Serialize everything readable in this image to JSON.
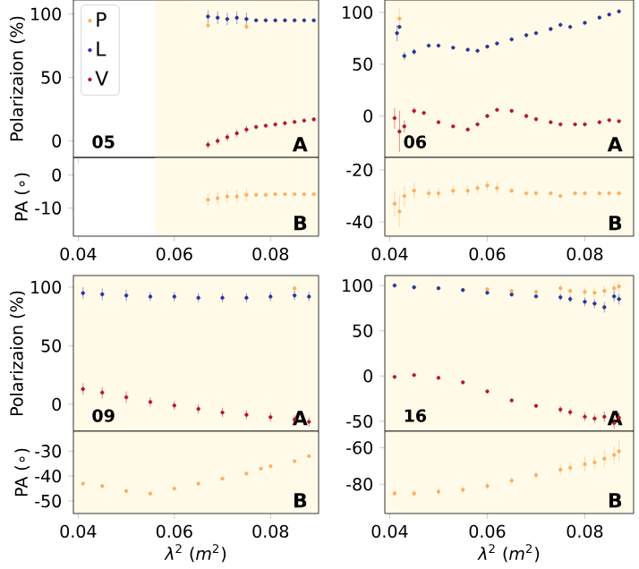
{
  "chart_data": [
    {
      "type": "scatter",
      "ylabel": "Polarizaion (%)",
      "xlim": [
        0.039,
        0.09
      ],
      "ylim": [
        -13,
        111
      ],
      "xticks": [
        0.04,
        0.06,
        0.08
      ],
      "yticks": [
        0,
        50,
        100
      ],
      "tick_labels": "y",
      "legend": "top left",
      "marker": "circle",
      "annotations": [
        "05",
        "A"
      ],
      "bands": [
        {
          "axis": "x",
          "from": 0.056,
          "to": 0.09,
          "color": "#fffbe8"
        }
      ],
      "series": [
        {
          "name": "P",
          "color": "#fdae61",
          "x": [
            0.067,
            0.075
          ],
          "values": [
            91,
            90
          ],
          "errors": [
            2,
            2
          ]
        },
        {
          "name": "L",
          "color": "#2b3499",
          "x": [
            0.067,
            0.069,
            0.071,
            0.073,
            0.075,
            0.077,
            0.079,
            0.081,
            0.083,
            0.085,
            0.087,
            0.089
          ],
          "values": [
            98,
            97,
            96,
            97,
            96,
            95,
            95,
            95,
            95,
            95,
            95,
            95
          ],
          "errors": [
            5,
            5,
            5,
            5,
            5,
            null,
            null,
            null,
            null,
            null,
            null,
            null
          ]
        },
        {
          "name": "V",
          "color": "#b2182b",
          "x": [
            0.067,
            0.069,
            0.071,
            0.073,
            0.075,
            0.077,
            0.079,
            0.081,
            0.083,
            0.085,
            0.087,
            0.089
          ],
          "values": [
            -3,
            0,
            3,
            6,
            9,
            11,
            12,
            13,
            14,
            15,
            16,
            17
          ],
          "errors": [
            3,
            3,
            3,
            3,
            3,
            null,
            null,
            null,
            null,
            null,
            null,
            null
          ]
        }
      ]
    },
    {
      "type": "scatter",
      "ylabel": "PA (∘)",
      "xlim": [
        0.039,
        0.09
      ],
      "ylim": [
        -18.5,
        5.3
      ],
      "xticks": [
        0.04,
        0.06,
        0.08
      ],
      "yticks": [
        -10,
        0
      ],
      "marker": "circle",
      "annotations": [
        "B"
      ],
      "bands": [
        {
          "axis": "x",
          "from": 0.056,
          "to": 0.09,
          "color": "#fffbe8"
        }
      ],
      "series": [
        {
          "color": "#fdae61",
          "x": [
            0.067,
            0.069,
            0.071,
            0.073,
            0.075,
            0.077,
            0.079,
            0.081,
            0.083,
            0.085,
            0.087,
            0.089
          ],
          "values": [
            -7.5,
            -7,
            -6.5,
            -6.5,
            -6,
            -6,
            -6,
            -5.8,
            -5.8,
            -5.8,
            -5.8,
            -5.8
          ],
          "errors": [
            2,
            2,
            2,
            2,
            2,
            null,
            null,
            null,
            null,
            null,
            null,
            null
          ]
        }
      ]
    },
    {
      "type": "scatter",
      "xlim": [
        0.039,
        0.09
      ],
      "ylim": [
        -40,
        112
      ],
      "xticks": [
        0.04,
        0.06,
        0.08
      ],
      "yticks": [
        0,
        50,
        100
      ],
      "tick_labels": "y",
      "marker": "circle",
      "annotations": [
        "06",
        "A"
      ],
      "bands": [
        {
          "axis": "x",
          "from": 0.039,
          "to": 0.09,
          "color": "#fffbe8"
        }
      ],
      "series": [
        {
          "color": "#fdae61",
          "x": [
            0.042
          ],
          "values": [
            94
          ],
          "errors": [
            10
          ]
        },
        {
          "color": "#2b3499",
          "x": [
            0.0415,
            0.042,
            0.043,
            0.045,
            0.048,
            0.05,
            0.053,
            0.056,
            0.058,
            0.06,
            0.062,
            0.065,
            0.068,
            0.07,
            0.073,
            0.075,
            0.077,
            0.08,
            0.083,
            0.085,
            0.087
          ],
          "values": [
            80,
            86,
            58,
            62,
            68,
            68,
            66,
            64,
            63,
            67,
            70,
            74,
            78,
            80,
            84,
            88,
            86,
            90,
            95,
            98,
            101
          ],
          "errors": [
            8,
            null,
            4,
            3,
            null,
            null,
            null,
            null,
            null,
            null,
            null,
            null,
            null,
            null,
            null,
            null,
            null,
            null,
            null,
            null,
            null
          ]
        },
        {
          "color": "#b2182b",
          "x": [
            0.041,
            0.042,
            0.043,
            0.045,
            0.047,
            0.05,
            0.053,
            0.056,
            0.058,
            0.06,
            0.062,
            0.065,
            0.068,
            0.07,
            0.073,
            0.075,
            0.078,
            0.08,
            0.083,
            0.085,
            0.087
          ],
          "values": [
            -2,
            -15,
            -10,
            5,
            3,
            -6,
            -10,
            -13,
            -8,
            0,
            6,
            5,
            0,
            -3,
            -6,
            -8,
            -8,
            -8,
            -6,
            -4,
            -5
          ],
          "errors": [
            10,
            20,
            6,
            3,
            null,
            null,
            null,
            null,
            null,
            null,
            null,
            null,
            null,
            null,
            null,
            null,
            null,
            null,
            null,
            null,
            null
          ]
        }
      ]
    },
    {
      "type": "scatter",
      "xlim": [
        0.039,
        0.09
      ],
      "ylim": [
        -45.5,
        -15.2
      ],
      "xticks": [
        0.04,
        0.06,
        0.08
      ],
      "yticks": [
        -40,
        -20
      ],
      "marker": "circle",
      "annotations": [
        "B"
      ],
      "bands": [
        {
          "axis": "x",
          "from": 0.039,
          "to": 0.09,
          "color": "#fffbe8"
        }
      ],
      "series": [
        {
          "color": "#fdae61",
          "x": [
            0.041,
            0.042,
            0.043,
            0.045,
            0.048,
            0.05,
            0.053,
            0.056,
            0.058,
            0.06,
            0.062,
            0.065,
            0.068,
            0.07,
            0.073,
            0.075,
            0.078,
            0.08,
            0.083,
            0.085,
            0.087
          ],
          "values": [
            -33,
            -36,
            -30,
            -28,
            -29,
            -29,
            -28,
            -28,
            -27,
            -26,
            -27,
            -28,
            -29,
            -29,
            -29,
            -30,
            -29,
            -29,
            -29,
            -29,
            -29
          ],
          "errors": [
            5,
            6,
            4,
            3,
            2,
            2,
            2,
            2,
            2,
            2,
            2,
            null,
            null,
            null,
            null,
            null,
            null,
            null,
            null,
            null,
            null
          ]
        }
      ]
    },
    {
      "type": "scatter",
      "ylabel": "Polarizaion (%)",
      "xlim": [
        0.039,
        0.09
      ],
      "ylim": [
        -23,
        110
      ],
      "xticks": [
        0.04,
        0.06,
        0.08
      ],
      "yticks": [
        0,
        50,
        100
      ],
      "tick_labels": "y",
      "marker": "circle",
      "annotations": [
        "09",
        "A"
      ],
      "bands": [
        {
          "axis": "x",
          "from": 0.039,
          "to": 0.09,
          "color": "#fffbe8"
        }
      ],
      "series": [
        {
          "color": "#fdae61",
          "x": [
            0.085
          ],
          "values": [
            99
          ],
          "errors": [
            3
          ]
        },
        {
          "color": "#2b3499",
          "x": [
            0.041,
            0.045,
            0.05,
            0.055,
            0.06,
            0.065,
            0.07,
            0.075,
            0.08,
            0.085,
            0.088
          ],
          "values": [
            95,
            94,
            93,
            92,
            92,
            91,
            91,
            91,
            92,
            93,
            92
          ],
          "errors": [
            5,
            5,
            5,
            4,
            4,
            4,
            4,
            4,
            4,
            4,
            4
          ]
        },
        {
          "color": "#b2182b",
          "x": [
            0.041,
            0.045,
            0.05,
            0.055,
            0.06,
            0.065,
            0.07,
            0.075,
            0.08,
            0.085,
            0.088
          ],
          "values": [
            13,
            10,
            6,
            2,
            -1,
            -4,
            -7,
            -9,
            -11,
            -13,
            -15
          ],
          "errors": [
            5,
            5,
            5,
            4,
            4,
            4,
            4,
            4,
            4,
            4,
            4
          ]
        }
      ]
    },
    {
      "type": "scatter",
      "ylabel": "PA (∘)",
      "xlabel": "*λ*$^{2}$ (*m*$^{2}$)",
      "xlim": [
        0.039,
        0.09
      ],
      "ylim": [
        -55,
        -22
      ],
      "xticks": [
        0.04,
        0.06,
        0.08
      ],
      "yticks": [
        -50,
        -40,
        -30
      ],
      "marker": "circle",
      "annotations": [
        "B"
      ],
      "bands": [
        {
          "axis": "x",
          "from": 0.039,
          "to": 0.09,
          "color": "#fffbe8"
        }
      ],
      "series": [
        {
          "color": "#fdae61",
          "x": [
            0.041,
            0.045,
            0.05,
            0.055,
            0.06,
            0.065,
            0.07,
            0.075,
            0.078,
            0.08,
            0.085,
            0.088
          ],
          "values": [
            -43,
            -44,
            -46,
            -47,
            -45,
            -43,
            -41,
            -39,
            -37,
            -36,
            -34,
            -32
          ]
        }
      ]
    },
    {
      "type": "scatter",
      "xlim": [
        0.039,
        0.09
      ],
      "ylim": [
        -61,
        111
      ],
      "xticks": [
        0.04,
        0.06,
        0.08
      ],
      "yticks": [
        -50,
        0,
        50,
        100
      ],
      "tick_labels": "y",
      "marker": "circle",
      "annotations": [
        "16",
        "A"
      ],
      "bands": [
        {
          "axis": "x",
          "from": 0.039,
          "to": 0.09,
          "color": "#fffbe8"
        }
      ],
      "series": [
        {
          "color": "#fdae61",
          "x": [
            0.06,
            0.065,
            0.07,
            0.075,
            0.077,
            0.08,
            0.082,
            0.084,
            0.086,
            0.087
          ],
          "values": [
            96,
            94,
            93,
            97,
            94,
            93,
            92,
            94,
            97,
            99
          ],
          "errors": [
            null,
            null,
            null,
            4,
            4,
            5,
            5,
            6,
            6,
            6
          ]
        },
        {
          "color": "#2b3499",
          "x": [
            0.041,
            0.045,
            0.05,
            0.055,
            0.06,
            0.065,
            0.07,
            0.075,
            0.077,
            0.08,
            0.082,
            0.084,
            0.086,
            0.087
          ],
          "values": [
            100,
            98,
            97,
            95,
            92,
            90,
            88,
            87,
            85,
            82,
            80,
            76,
            88,
            85
          ],
          "errors": [
            null,
            null,
            null,
            null,
            null,
            null,
            null,
            4,
            4,
            5,
            5,
            6,
            6,
            6
          ]
        },
        {
          "color": "#b2182b",
          "x": [
            0.041,
            0.045,
            0.05,
            0.055,
            0.06,
            0.065,
            0.07,
            0.075,
            0.077,
            0.08,
            0.082,
            0.084,
            0.086,
            0.087
          ],
          "values": [
            -1,
            1,
            -2,
            -7,
            -17,
            -27,
            -33,
            -37,
            -40,
            -45,
            -47,
            -45,
            -52,
            -46
          ],
          "errors": [
            null,
            null,
            null,
            null,
            null,
            null,
            null,
            4,
            4,
            5,
            5,
            6,
            6,
            6
          ]
        }
      ]
    },
    {
      "type": "scatter",
      "xlabel": "*λ*$^{2}$ (*m*$^{2}$)",
      "xlim": [
        0.039,
        0.09
      ],
      "ylim": [
        -96,
        -51
      ],
      "xticks": [
        0.04,
        0.06,
        0.08
      ],
      "yticks": [
        -80,
        -60
      ],
      "marker": "circle",
      "annotations": [
        "B"
      ],
      "bands": [
        {
          "axis": "x",
          "from": 0.039,
          "to": 0.09,
          "color": "#fffbe8"
        }
      ],
      "series": [
        {
          "color": "#fdae61",
          "x": [
            0.041,
            0.045,
            0.05,
            0.055,
            0.06,
            0.065,
            0.07,
            0.075,
            0.077,
            0.08,
            0.082,
            0.084,
            0.086,
            0.087
          ],
          "values": [
            -85,
            -85,
            -84,
            -83,
            -81,
            -78,
            -75,
            -72,
            -71,
            -69,
            -68,
            -66,
            -64,
            -62
          ],
          "errors": [
            2,
            2,
            2,
            2,
            2,
            2,
            2,
            3,
            3,
            4,
            4,
            5,
            5,
            6
          ]
        }
      ]
    }
  ]
}
